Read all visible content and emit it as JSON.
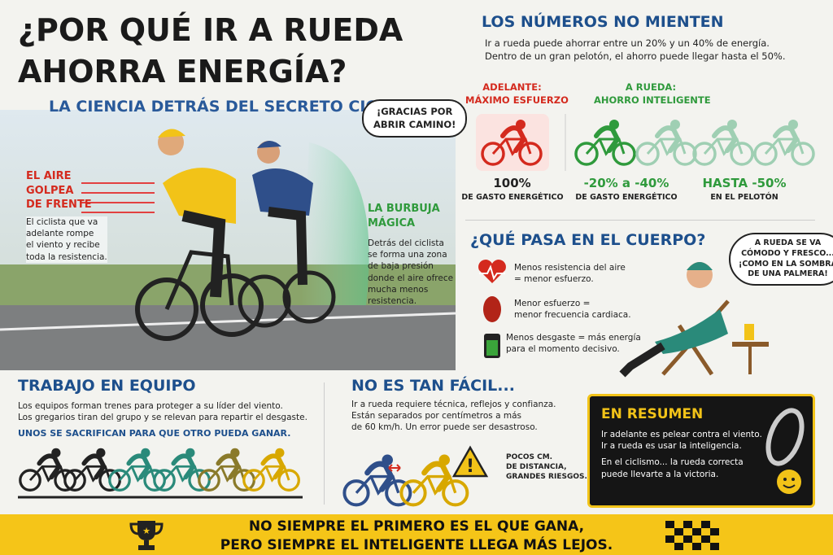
{
  "header": {
    "title": [
      "¿POR QUÉ IR A RUEDA",
      "AHORRA ENERGÍA?"
    ],
    "subtitle": "LA CIENCIA DETRÁS DEL SECRETO CICLISTA"
  },
  "thanks_bubble": [
    "¡GRACIAS POR",
    "ABRIR CAMINO!"
  ],
  "wind": {
    "title": [
      "EL AIRE",
      "GOLPEA",
      "DE FRENTE"
    ],
    "text": [
      "El ciclista que va",
      "adelante rompe",
      "el viento y recibe",
      "toda la resistencia."
    ]
  },
  "bubble": {
    "title": [
      "LA BURBUJA",
      "MÁGICA"
    ],
    "text": [
      "Detrás del ciclista",
      "se forma una zona",
      "de baja presión",
      "donde el aire ofrece",
      "mucha menos",
      "resistencia."
    ]
  },
  "numbers": {
    "title": "LOS NÚMEROS NO MIENTEN",
    "text": [
      "Ir a rueda puede ahorrar entre un 20% y un 40% de energía.",
      "Dentro de un gran pelotón, el ahorro puede llegar hasta el 50%."
    ],
    "columns": [
      {
        "heading": [
          "ADELANTE:",
          "MÁXIMO ESFUERZO"
        ],
        "value": "100%",
        "caption": "DE GASTO ENERGÉTICO"
      },
      {
        "heading": [
          "A RUEDA:",
          "AHORRO INTELIGENTE"
        ],
        "value": "-20% a -40%",
        "caption": "DE GASTO ENERGÉTICO"
      },
      {
        "value": "HASTA -50%",
        "caption": "EN EL PELOTÓN"
      }
    ]
  },
  "body": {
    "title": "¿QUÉ PASA EN EL CUERPO?",
    "items": [
      [
        "Menos resistencia del aire",
        "= menor esfuerzo."
      ],
      [
        "Menor esfuerzo =",
        "menor frecuencia cardiaca."
      ],
      [
        "Menos desgaste = más energía",
        "para el momento decisivo."
      ]
    ],
    "bubble": [
      "A RUEDA SE VA",
      "CÓMODO Y FRESCO...",
      "¡COMO EN LA SOMBRA",
      "DE UNA PALMERA!"
    ]
  },
  "teamwork": {
    "title": "TRABAJO EN EQUIPO",
    "text": [
      "Los equipos forman trenes para proteger a su líder del viento.",
      "Los gregarios tiran del grupo y se relevan para repartir el desgaste."
    ],
    "highlight": "UNOS SE SACRIFICAN PARA QUE OTRO PUEDA GANAR."
  },
  "not_easy": {
    "title": "NO ES TAN FÁCIL...",
    "text": [
      "Ir a rueda requiere técnica, reflejos y confianza.",
      "Están separados por centímetros a más",
      "de 60 km/h. Un error puede ser desastroso."
    ],
    "warning": [
      "POCOS CM.",
      "DE DISTANCIA,",
      "GRANDES RIESGOS."
    ]
  },
  "summary": {
    "title": "EN RESUMEN",
    "text": [
      "Ir adelante es pelear contra el viento.",
      "Ir a rueda es usar la inteligencia.",
      "En el ciclismo... la rueda correcta",
      "puede llevarte a la victoria."
    ]
  },
  "footer": [
    "NO SIEMPRE EL PRIMERO ES EL QUE GANA,",
    "PERO SIEMPRE EL INTELIGENTE LLEGA MÁS LEJOS."
  ]
}
